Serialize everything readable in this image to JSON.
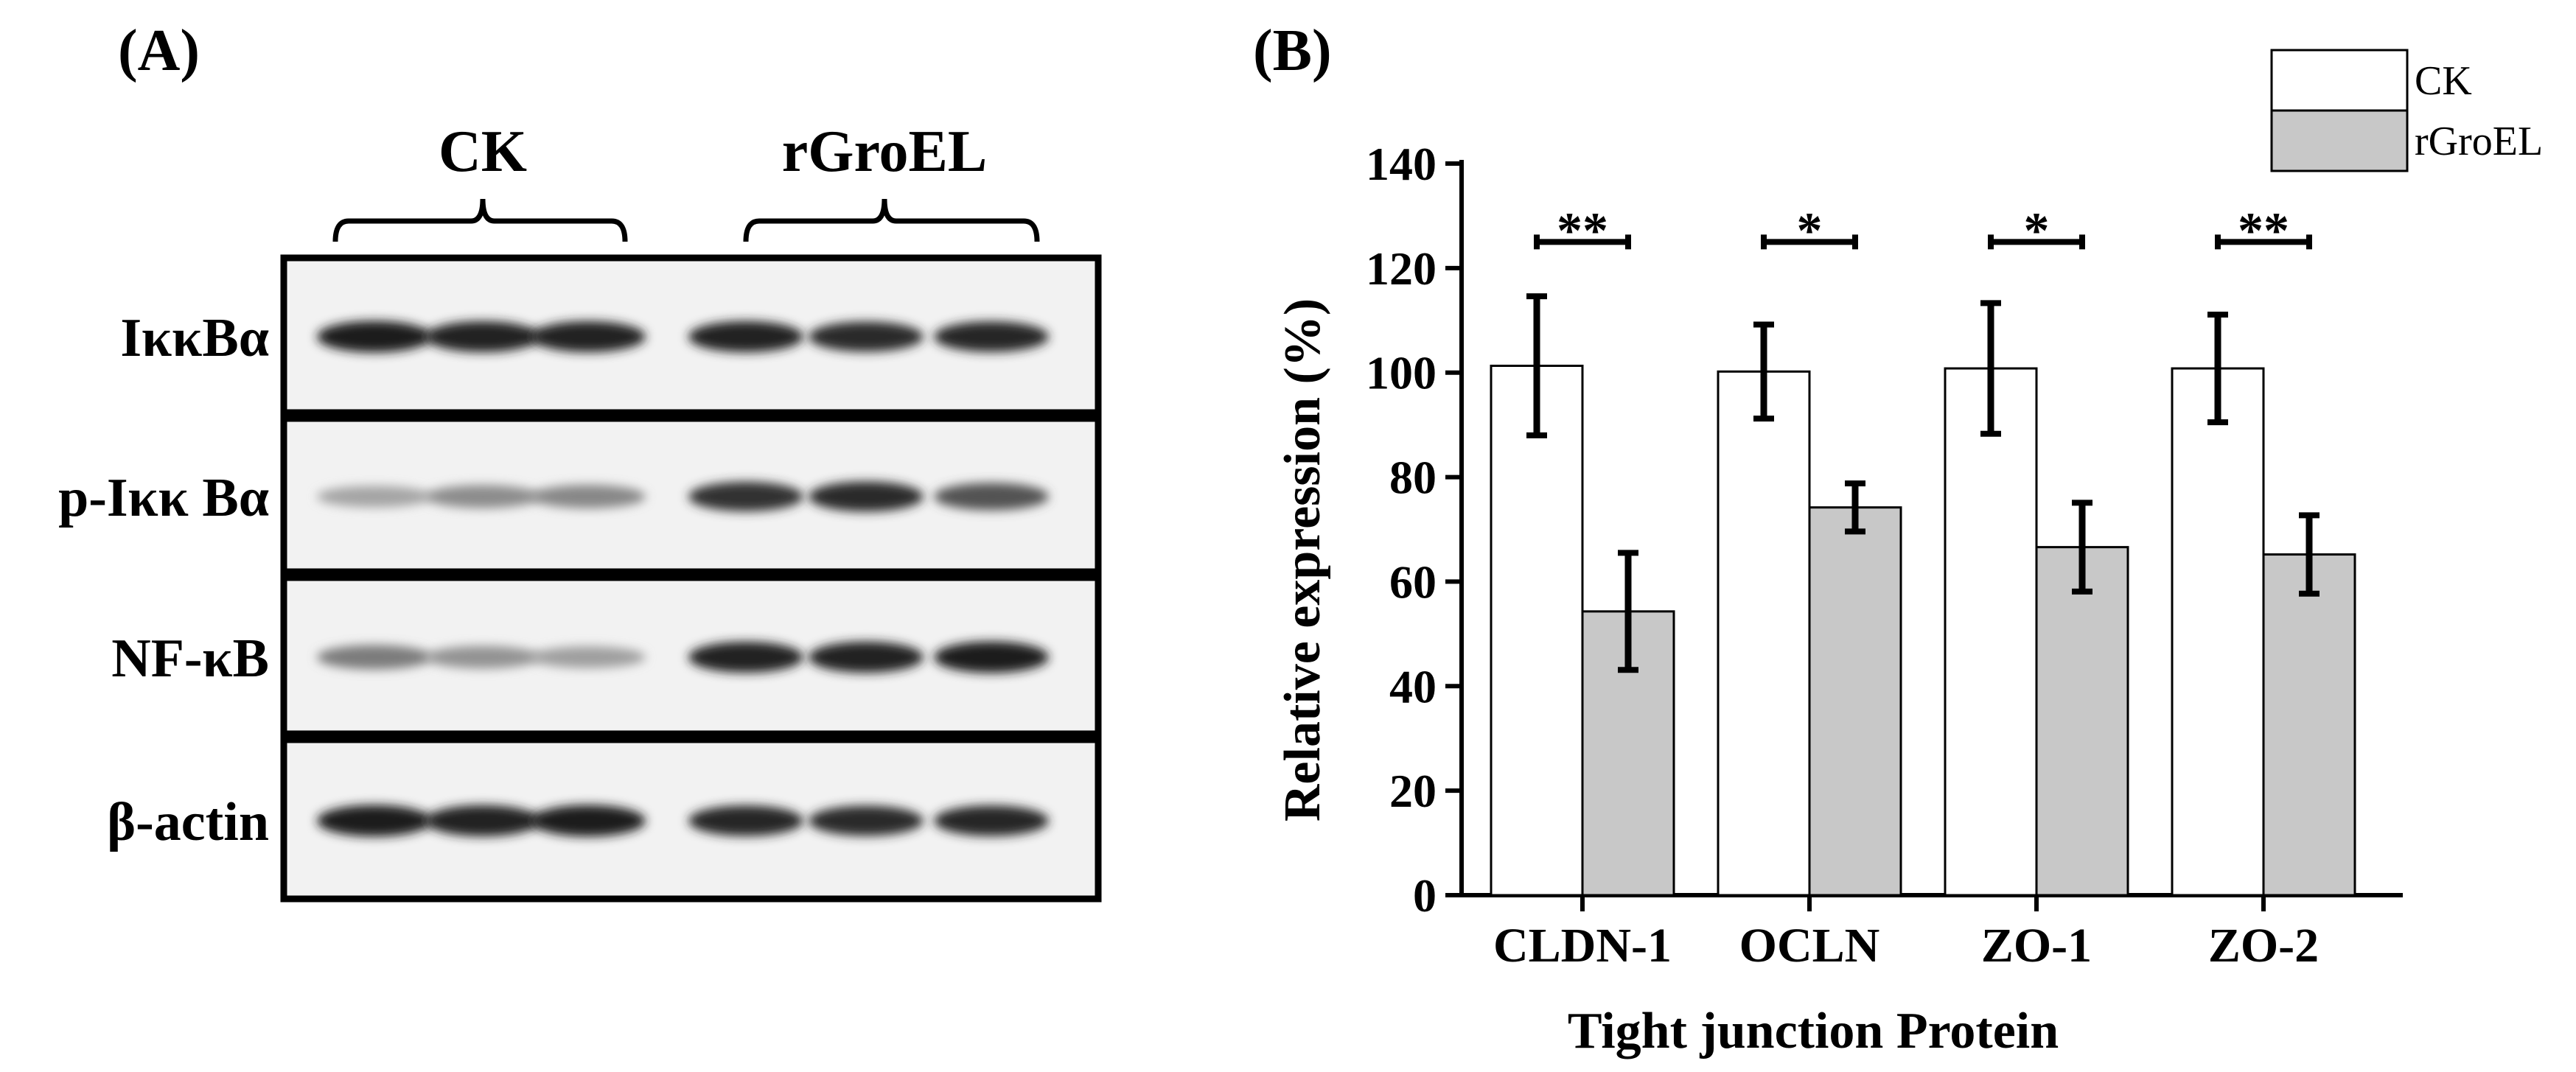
{
  "panel_a": {
    "label": "(A)",
    "groups": [
      "CK",
      "rGroEL"
    ],
    "blots": [
      {
        "name": "IκκBα",
        "intensity": [
          0.95,
          0.92,
          0.92,
          0.93,
          0.88,
          0.9
        ]
      },
      {
        "name": "p-Iκκ Bα",
        "intensity": [
          0.38,
          0.48,
          0.5,
          0.85,
          0.88,
          0.72
        ]
      },
      {
        "name": "NF-κB",
        "intensity": [
          0.55,
          0.45,
          0.4,
          0.92,
          0.93,
          0.95
        ]
      },
      {
        "name": "β-actin",
        "intensity": [
          0.95,
          0.93,
          0.95,
          0.9,
          0.88,
          0.9
        ]
      }
    ]
  },
  "panel_b": {
    "label": "(B)"
  },
  "chart_data": {
    "type": "bar",
    "categories": [
      "CLDN-1",
      "OCLN",
      "ZO-1",
      "ZO-2"
    ],
    "series": [
      {
        "name": "CK",
        "values": [
          101.3,
          100.2,
          100.8,
          100.8
        ],
        "errors": [
          13.3,
          9.0,
          12.5,
          10.3
        ],
        "color": "#ffffff"
      },
      {
        "name": "rGroEL",
        "values": [
          54.3,
          74.2,
          66.6,
          65.2
        ],
        "errors": [
          11.2,
          4.6,
          8.5,
          7.5
        ],
        "color": "#c8c8c8"
      }
    ],
    "significance": [
      "**",
      "*",
      "*",
      "**"
    ],
    "xlabel": "Tight junction Protein",
    "ylabel": "Relative expression (%)",
    "ylim": [
      0,
      140
    ],
    "yticks": [
      0,
      20,
      40,
      60,
      80,
      100,
      120,
      140
    ],
    "legend": {
      "placement": "top-right"
    },
    "grid": false
  }
}
